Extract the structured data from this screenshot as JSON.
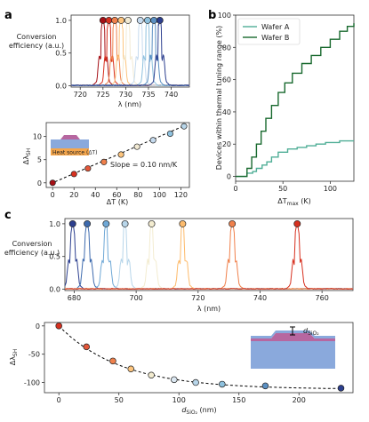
{
  "panels": {
    "a": "a",
    "b": "b",
    "c": "c"
  },
  "chart_data": [
    {
      "id": "a-top",
      "type": "line",
      "xlabel": "λ (nm)",
      "ylabel": "Conversion efficiency (a.u.)",
      "xlim": [
        718,
        744
      ],
      "ylim": [
        -0.02,
        1.08
      ],
      "xticks": [
        "720",
        "725",
        "730",
        "735",
        "740"
      ],
      "yticks": [
        "0.0",
        "0.5",
        "1.0"
      ],
      "peaks": [
        725.0,
        726.3,
        727.6,
        729.0,
        730.5,
        733.2,
        734.8,
        736.2,
        737.5
      ],
      "colors": [
        "#a50f15",
        "#d7301f",
        "#f0804b",
        "#fdc57e",
        "#f2ead3",
        "#c6dbef",
        "#8ec1de",
        "#5a8fc2",
        "#2c3f8f"
      ]
    },
    {
      "id": "a-bottom",
      "type": "scatter",
      "xlabel": "ΔT (K)",
      "ylabel": "Δλ_SH",
      "xlim": [
        -6,
        128
      ],
      "ylim": [
        -1,
        13
      ],
      "xticks": [
        "0",
        "20",
        "40",
        "60",
        "80",
        "100",
        "120"
      ],
      "yticks": [
        "0",
        "5",
        "10"
      ],
      "x": [
        0,
        20,
        33,
        48,
        64,
        79,
        94,
        110,
        123
      ],
      "y": [
        0.0,
        1.9,
        3.1,
        4.5,
        6.1,
        7.8,
        9.2,
        10.6,
        12.2
      ],
      "fit_slope": 0.1,
      "annotation": "Slope = 0.10 nm/K",
      "inset_label": "Heat source (ΔT)"
    },
    {
      "id": "b",
      "type": "line",
      "xlabel": "ΔT_max (K)",
      "ylabel": "Devices within thermal tuning range (%)",
      "xlim": [
        0,
        125
      ],
      "ylim": [
        -3,
        100
      ],
      "xticks": [
        "0",
        "50",
        "100"
      ],
      "yticks": [
        "0",
        "20",
        "40",
        "60",
        "80",
        "100"
      ],
      "legend": "top-left",
      "series": [
        {
          "name": "Wafer A",
          "color": "#4fae96",
          "x": [
            0,
            8,
            12,
            18,
            22,
            28,
            33,
            38,
            45,
            55,
            65,
            75,
            85,
            95,
            110,
            125
          ],
          "y": [
            0,
            0,
            2,
            3,
            5,
            7,
            9,
            12,
            15,
            17,
            18,
            19,
            20,
            21,
            22,
            22
          ]
        },
        {
          "name": "Wafer B",
          "color": "#18692e",
          "x": [
            0,
            8,
            12,
            17,
            22,
            27,
            32,
            38,
            45,
            52,
            60,
            70,
            80,
            90,
            100,
            110,
            118,
            125
          ],
          "y": [
            0,
            0,
            5,
            12,
            20,
            28,
            36,
            44,
            52,
            58,
            64,
            70,
            75,
            80,
            85,
            90,
            93,
            95
          ]
        }
      ]
    },
    {
      "id": "c-top",
      "type": "line",
      "xlabel": "λ (nm)",
      "ylabel": "Conversion efficiency (a.u.)",
      "xlim": [
        677,
        770
      ],
      "ylim": [
        -0.02,
        1.08
      ],
      "xticks": [
        "680",
        "700",
        "720",
        "740",
        "760"
      ],
      "yticks": [
        "0.0",
        "0.5",
        "1.0"
      ],
      "peaks": [
        679.5,
        684.2,
        690.3,
        696.4,
        705.0,
        715.0,
        731.0,
        752.0
      ],
      "colors": [
        "#2c3f8f",
        "#3d6aae",
        "#6fa8d6",
        "#b8d6ea",
        "#f3ecd0",
        "#fdbb6c",
        "#f0804b",
        "#d7301f"
      ]
    },
    {
      "id": "c-bottom",
      "type": "scatter",
      "xlabel": "d_SiO2 (nm)",
      "ylabel": "Δλ_SH",
      "xlim": [
        -12,
        245
      ],
      "ylim": [
        -118,
        6
      ],
      "xticks": [
        "0",
        "50",
        "100",
        "150",
        "200"
      ],
      "yticks": [
        "0",
        "-50",
        "-100"
      ],
      "x": [
        0,
        23,
        45,
        60,
        77,
        96,
        114,
        136,
        172,
        235
      ],
      "y": [
        0,
        -37,
        -62,
        -76,
        -87,
        -95,
        -100,
        -103,
        -106,
        -110
      ],
      "inset_label": "d_SiO2"
    }
  ]
}
